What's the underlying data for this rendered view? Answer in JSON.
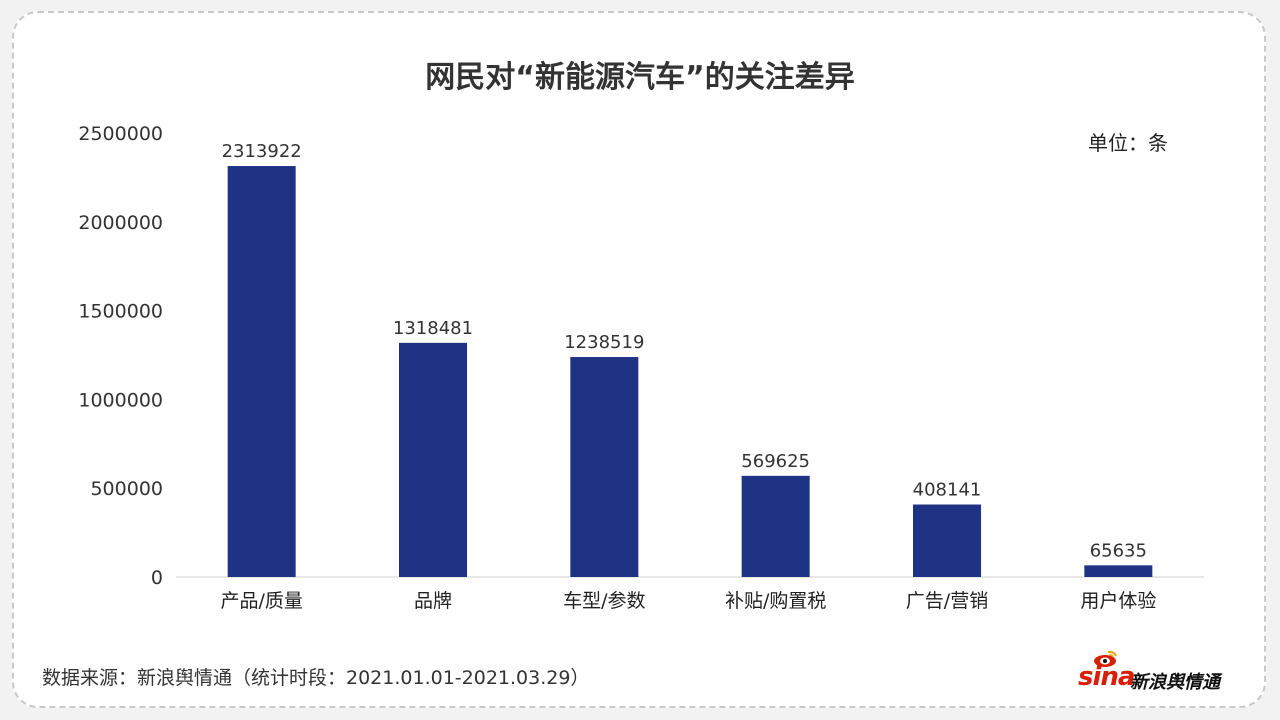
{
  "title": "网民对“新能源汽车”的关注差异",
  "unit_label": "单位：条",
  "source": "数据来源：新浪舆情通（统计时段：2021.01.01-2021.03.29）",
  "logo": {
    "sina_text": "sina",
    "brand_text": "新浪舆情通"
  },
  "colors": {
    "bar": "#1f3385",
    "axis": "#d9d9d9",
    "text": "#333333",
    "logo_red": "#d81e06"
  },
  "chart_data": {
    "type": "bar",
    "title": "网民对“新能源汽车”的关注差异",
    "categories": [
      "产品/质量",
      "品牌",
      "车型/参数",
      "补贴/购置税",
      "广告/营销",
      "用户体验"
    ],
    "values": [
      2313922,
      1318481,
      1238519,
      569625,
      408141,
      65635
    ],
    "value_labels": [
      "2313922",
      "1318481",
      "1238519",
      "569625",
      "408141",
      "65635"
    ],
    "ylim": [
      0,
      2500000
    ],
    "yticks": [
      0,
      500000,
      1000000,
      1500000,
      2000000,
      2500000
    ],
    "ytick_labels": [
      "0",
      "500000",
      "1000000",
      "1500000",
      "2000000",
      "2500000"
    ],
    "grid": false,
    "legend": "none"
  }
}
